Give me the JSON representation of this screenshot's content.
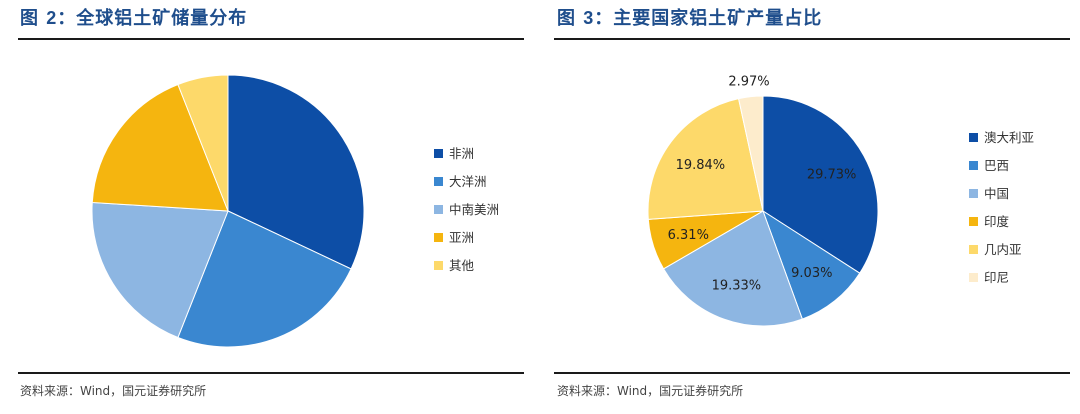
{
  "left_panel": {
    "figure_label": "图",
    "figure_number": "2",
    "title": "：全球铝土矿储量分布",
    "source": "资料来源：Wind，国元证券研究所"
  },
  "right_panel": {
    "figure_label": "图",
    "figure_number": "3",
    "title": "：主要国家铝土矿产量占比",
    "source": "资料来源：Wind，国元证券研究所"
  },
  "colors": {
    "title": "#1f4e8c",
    "dark_blue": "#0d4ea6",
    "mid_blue": "#3a87d0",
    "light_blue": "#8db6e2",
    "orange": "#f5b50f",
    "yellow": "#fdd96a",
    "cream": "#fdeccc"
  },
  "chart_data": [
    {
      "type": "pie",
      "title": "全球铝土矿储量分布",
      "start_angle_deg": 0,
      "labels_on_slices": false,
      "legend_position": "right",
      "slices": [
        {
          "name": "非洲",
          "value": 32,
          "color": "#0d4ea6"
        },
        {
          "name": "大洋洲",
          "value": 24,
          "color": "#3a87d0"
        },
        {
          "name": "中南美洲",
          "value": 20,
          "color": "#8db6e2"
        },
        {
          "name": "亚洲",
          "value": 18,
          "color": "#f5b50f"
        },
        {
          "name": "其他",
          "value": 6,
          "color": "#fdd96a"
        }
      ]
    },
    {
      "type": "pie",
      "title": "主要国家铝土矿产量占比",
      "start_angle_deg": 0,
      "labels_on_slices": true,
      "legend_position": "right",
      "slices": [
        {
          "name": "澳大利亚",
          "value": 29.73,
          "label": "29.73%",
          "color": "#0d4ea6"
        },
        {
          "name": "巴西",
          "value": 9.03,
          "label": "9.03%",
          "color": "#3a87d0"
        },
        {
          "name": "中国",
          "value": 19.33,
          "label": "19.33%",
          "color": "#8db6e2"
        },
        {
          "name": "印度",
          "value": 6.31,
          "label": "6.31%",
          "color": "#f5b50f"
        },
        {
          "name": "几内亚",
          "value": 19.84,
          "label": "19.84%",
          "color": "#fdd96a"
        },
        {
          "name": "印尼",
          "value": 2.97,
          "label": "2.97%",
          "color": "#fdeccc"
        }
      ]
    }
  ]
}
